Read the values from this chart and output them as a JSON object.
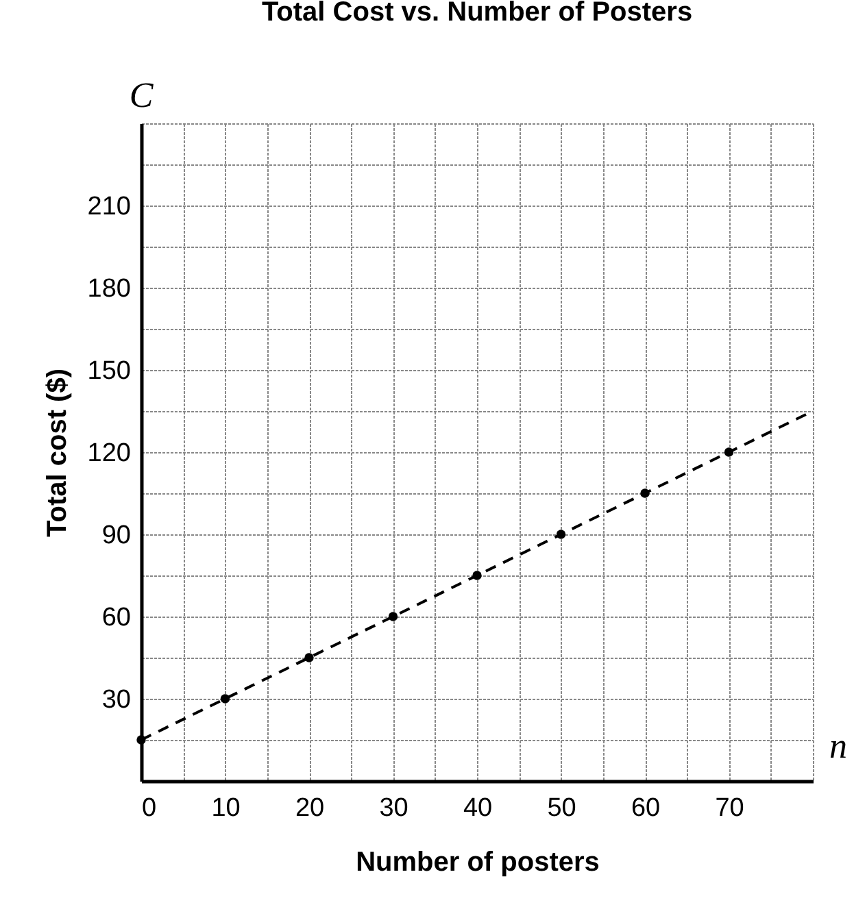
{
  "chart_data": {
    "type": "scatter",
    "title": "Total Cost vs. Number of Posters",
    "xlabel": "Number of posters",
    "ylabel": "Total cost ($)",
    "annotations": [
      "C",
      "n"
    ],
    "xlim": [
      0,
      80
    ],
    "ylim": [
      0,
      240
    ],
    "xticks": [
      0,
      {
        "value": 5,
        "label": null
      },
      10,
      {
        "value": 15,
        "label": null
      },
      20,
      {
        "value": 25,
        "label": null
      },
      30,
      {
        "value": 35,
        "label": null
      },
      40,
      {
        "value": 45,
        "label": null
      },
      50,
      {
        "value": 55,
        "label": null
      },
      60,
      {
        "value": 65,
        "label": null
      },
      70,
      {
        "value": 75,
        "label": null
      },
      {
        "value": 80,
        "label": null
      }
    ],
    "yticks": [
      {
        "value": 15,
        "label": null
      },
      30,
      {
        "value": 45,
        "label": null
      },
      60,
      {
        "value": 75,
        "label": null
      },
      90,
      {
        "value": 105,
        "label": null
      },
      120,
      {
        "value": 135,
        "label": null
      },
      150,
      {
        "value": 165,
        "label": null
      },
      180,
      {
        "value": 195,
        "label": null
      },
      210,
      {
        "value": 225,
        "label": null
      },
      {
        "value": 240,
        "label": null
      }
    ],
    "grid": true,
    "marker": "circle",
    "series": [
      {
        "color": "#000000",
        "x": [
          0,
          10,
          20,
          30,
          40,
          50,
          60,
          70
        ],
        "values": [
          15,
          30,
          45,
          60,
          75,
          90,
          105,
          120
        ]
      },
      {
        "type": "line",
        "color": "#000000",
        "line_style": "dashed",
        "marker": "none",
        "x": [
          0,
          80
        ],
        "values": [
          15,
          135
        ]
      }
    ]
  }
}
